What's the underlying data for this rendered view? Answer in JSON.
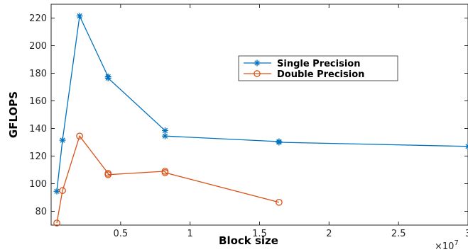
{
  "chart_data": {
    "type": "line",
    "title": "",
    "xlabel": "Block size",
    "ylabel": "GFLOPS",
    "x_exponent_label": "×10",
    "x_exponent_power": "7",
    "x_tick_labels": [
      "0.5",
      "1",
      "1.5",
      "2",
      "2.5",
      "3"
    ],
    "x_ticks": [
      0.5,
      1,
      1.5,
      2,
      2.5,
      3
    ],
    "y_ticks": [
      80,
      100,
      120,
      140,
      160,
      180,
      200,
      220
    ],
    "y_tick_labels": [
      "80",
      "100",
      "120",
      "140",
      "160",
      "180",
      "200",
      "220"
    ],
    "xlim": [
      0,
      3
    ],
    "ylim": [
      70,
      230
    ],
    "grid": false,
    "legend_position": "top-right",
    "series": [
      {
        "name": "Single Precision",
        "color": "#0072BD",
        "marker": "asterisk",
        "x": [
          0.041,
          0.082,
          0.205,
          0.41,
          0.41,
          0.82,
          0.82,
          1.64,
          1.64,
          3.0
        ],
        "y": [
          94.5,
          131.5,
          221.5,
          177.5,
          176.5,
          138.5,
          134.5,
          130.5,
          130.0,
          127.0
        ]
      },
      {
        "name": "Double Precision",
        "color": "#D95319",
        "marker": "circle",
        "x": [
          0.041,
          0.082,
          0.205,
          0.41,
          0.41,
          0.82,
          0.82,
          1.64
        ],
        "y": [
          71.5,
          95.0,
          134.5,
          107.5,
          106.5,
          109.0,
          108.0,
          86.5
        ]
      }
    ]
  }
}
